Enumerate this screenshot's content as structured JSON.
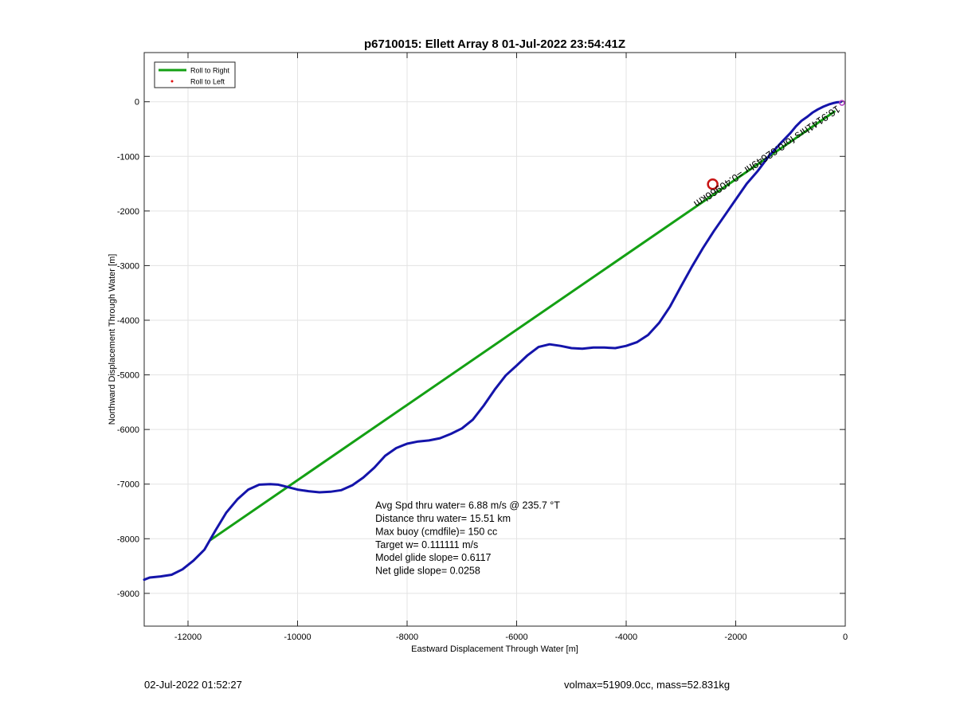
{
  "chart_data": {
    "type": "line",
    "title": "p6710015: Ellett Array 8 01-Jul-2022 23:54:41Z",
    "xlabel": "Eastward Displacement Through Water [m]",
    "ylabel": "Northward Displacement Through Water [m]",
    "xlim": [
      -12800,
      0
    ],
    "ylim": [
      -9600,
      900
    ],
    "xticks": [
      -12000,
      -10000,
      -8000,
      -6000,
      -4000,
      -2000,
      0
    ],
    "yticks": [
      0,
      -1000,
      -2000,
      -3000,
      -4000,
      -5000,
      -6000,
      -7000,
      -8000,
      -9000
    ],
    "grid": true,
    "legend": {
      "location": "top-left",
      "entries": [
        {
          "label": "Roll to Right",
          "color": "#14a014",
          "style": "line"
        },
        {
          "label": "Roll to Left",
          "color": "#e01010",
          "style": "dot"
        }
      ]
    },
    "series": [
      {
        "name": "Roll to Right",
        "color": "#14a014",
        "x": [
          -11600,
          -200
        ],
        "y": [
          -8030,
          -180
        ]
      },
      {
        "color": "#1414aa",
        "x": [
          -12800,
          -12700,
          -12500,
          -12300,
          -12100,
          -11900,
          -11700,
          -11500,
          -11300,
          -11100,
          -10900,
          -10700,
          -10500,
          -10350,
          -10200,
          -10000,
          -9800,
          -9600,
          -9400,
          -9200,
          -9000,
          -8800,
          -8600,
          -8400,
          -8200,
          -8000,
          -7800,
          -7600,
          -7400,
          -7200,
          -7000,
          -6800,
          -6600,
          -6400,
          -6200,
          -6000,
          -5800,
          -5600,
          -5400,
          -5200,
          -5000,
          -4800,
          -4600,
          -4400,
          -4200,
          -4000,
          -3800,
          -3600,
          -3400,
          -3200,
          -3000,
          -2800,
          -2600,
          -2400,
          -2200,
          -2000,
          -1800,
          -1600,
          -1400,
          -1200,
          -1000,
          -900,
          -800,
          -700,
          -600,
          -500,
          -400,
          -300,
          -200,
          -150,
          -100,
          -80
        ],
        "y": [
          -8750,
          -8710,
          -8690,
          -8660,
          -8560,
          -8400,
          -8200,
          -7850,
          -7520,
          -7280,
          -7100,
          -7010,
          -7000,
          -7010,
          -7050,
          -7100,
          -7130,
          -7150,
          -7140,
          -7110,
          -7020,
          -6880,
          -6700,
          -6480,
          -6340,
          -6260,
          -6220,
          -6200,
          -6160,
          -6080,
          -5980,
          -5820,
          -5560,
          -5270,
          -5010,
          -4830,
          -4640,
          -4490,
          -4440,
          -4470,
          -4510,
          -4520,
          -4500,
          -4500,
          -4510,
          -4470,
          -4400,
          -4270,
          -4050,
          -3750,
          -3380,
          -3020,
          -2680,
          -2370,
          -2080,
          -1790,
          -1500,
          -1270,
          -1000,
          -780,
          -570,
          -450,
          -350,
          -280,
          -200,
          -140,
          -90,
          -50,
          -20,
          -10,
          -5,
          -2
        ]
      }
    ],
    "annotations": {
      "marker_circle": {
        "x": -2420,
        "y": -1510,
        "color": "#c81414"
      },
      "rotated_text": "16.9141hrs for0.62649hr =0.40966km",
      "stats_lines": [
        "Avg Spd thru water=  6.88 m/s @ 235.7 °T",
        "Distance thru water= 15.51 km",
        "Max buoy (cmdfile)= 150 cc",
        "Target w= 0.111111 m/s",
        "Model glide slope= 0.6117",
        "Net glide slope= 0.0258"
      ],
      "stats_anchor": {
        "x": -8580,
        "y": -7450
      }
    }
  },
  "footer": {
    "left": "02-Jul-2022 01:52:27",
    "right": "volmax=51909.0cc, mass=52.831kg"
  }
}
